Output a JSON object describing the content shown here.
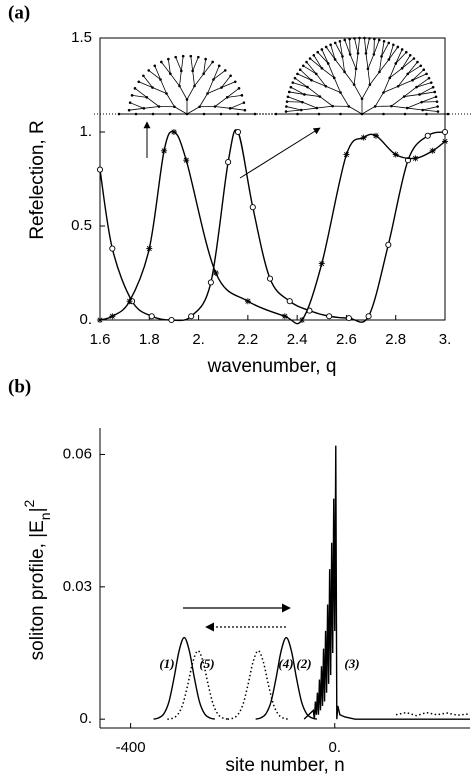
{
  "chart_data": [
    {
      "type": "line",
      "panel_label": "(a)",
      "x_label": "wavenumber, q",
      "y_label": "Refelection, R",
      "xlim": [
        1.6,
        3.0
      ],
      "ylim": [
        0,
        1.5
      ],
      "xticks": [
        1.6,
        1.8,
        {
          "value": 2,
          "label": "2."
        },
        2.2,
        2.4,
        2.6,
        2.8,
        {
          "value": 3,
          "label": "3."
        }
      ],
      "yticks": [
        {
          "value": 0,
          "label": "0."
        },
        0.5,
        {
          "value": 1,
          "label": "1."
        },
        1.5
      ],
      "series": [
        {
          "color": "#000000",
          "style": "solid",
          "marker": "circle",
          "smooth": true,
          "x": [
            1.6,
            1.65,
            1.73,
            1.81,
            1.89,
            1.97,
            2.05,
            2.12,
            2.16,
            2.22,
            2.29,
            2.37,
            2.45,
            2.53,
            2.61,
            2.69,
            2.77,
            2.85,
            2.93,
            3.0
          ],
          "values": [
            0.8,
            0.38,
            0.1,
            0.02,
            0.0,
            0.02,
            0.2,
            0.84,
            1.0,
            0.6,
            0.22,
            0.1,
            0.05,
            0.02,
            0.01,
            0.02,
            0.4,
            0.85,
            0.98,
            1.0
          ]
        },
        {
          "color": "#000000",
          "style": "solid",
          "marker": "star",
          "smooth": true,
          "x": [
            1.6,
            1.65,
            1.72,
            1.8,
            1.86,
            1.9,
            1.95,
            2.07,
            2.2,
            2.35,
            2.42,
            2.5,
            2.6,
            2.67,
            2.72,
            2.8,
            2.88,
            2.95,
            3.0
          ],
          "values": [
            0.0,
            0.02,
            0.1,
            0.38,
            0.9,
            1.0,
            0.85,
            0.25,
            0.1,
            0.02,
            0.0,
            0.3,
            0.88,
            0.97,
            0.98,
            0.88,
            0.86,
            0.9,
            0.95
          ]
        }
      ]
    },
    {
      "type": "line",
      "panel_label": "(b)",
      "x_label": "site number, n",
      "y_label": {
        "text": "soliton profile, |E",
        "sub": "n",
        "after": "|",
        "sup": "2"
      },
      "xlim": [
        -460,
        265
      ],
      "ylim": [
        -0.002,
        0.066
      ],
      "xticks": [
        -400,
        {
          "value": 0,
          "label": "0."
        }
      ],
      "yticks": [
        {
          "value": 0,
          "label": "0."
        },
        0.03,
        0.06
      ],
      "annotations": [
        "(1)",
        "(5)",
        "(4)",
        "(2)",
        "(3)"
      ],
      "series": [
        {
          "color": "#000000",
          "style": "solid",
          "smooth": true,
          "x": [
            -355,
            -345,
            -335,
            -325,
            -315,
            -305,
            -295,
            -285,
            -275,
            -265,
            -255,
            -245,
            -235
          ],
          "values": [
            0,
            0.0003,
            0.0012,
            0.0039,
            0.0093,
            0.0155,
            0.0185,
            0.0155,
            0.0093,
            0.0039,
            0.0012,
            0.0003,
            0
          ]
        },
        {
          "color": "#000000",
          "style": "solid",
          "smooth": true,
          "x": [
            -155,
            -145,
            -135,
            -125,
            -115,
            -105,
            -95,
            -85,
            -75,
            -65,
            -55,
            -45,
            -35
          ],
          "values": [
            0,
            0.0003,
            0.0012,
            0.0039,
            0.0093,
            0.0155,
            0.0185,
            0.0155,
            0.0093,
            0.0039,
            0.0012,
            0.0003,
            0
          ]
        },
        {
          "color": "#000000",
          "style": "solid",
          "smooth": false,
          "x": [
            -60,
            -42,
            -40,
            -38,
            -36,
            -34,
            -32,
            -30,
            -28,
            -26,
            -24,
            -22,
            -20,
            -18,
            -16,
            -14,
            -12,
            -10,
            -8,
            -6,
            -4,
            -2,
            0,
            2,
            4,
            6,
            10,
            20,
            40,
            100,
            265
          ],
          "values": [
            0,
            0.002,
            0,
            0.004,
            0.001,
            0.006,
            0.001,
            0.009,
            0.002,
            0.012,
            0.003,
            0.016,
            0.004,
            0.02,
            0.006,
            0.026,
            0.008,
            0.034,
            0.01,
            0.04,
            0.015,
            0.05,
            0.02,
            0.062,
            0,
            0.003,
            0.001,
            0.0005,
            0,
            0,
            0
          ]
        },
        {
          "color": "#000000",
          "style": "dotted",
          "smooth": true,
          "x": [
            -328,
            -318,
            -308,
            -298,
            -288,
            -278,
            -268,
            -258,
            -248,
            -238,
            -228,
            -218,
            -208
          ],
          "values": [
            0,
            0.0002,
            0.001,
            0.0033,
            0.0078,
            0.013,
            0.0155,
            0.013,
            0.0078,
            0.0033,
            0.001,
            0.0002,
            0
          ]
        },
        {
          "color": "#000000",
          "style": "dotted",
          "smooth": true,
          "x": [
            -210,
            -200,
            -190,
            -180,
            -170,
            -160,
            -150,
            -140,
            -130,
            -120,
            -110,
            -100,
            -90
          ],
          "values": [
            0,
            0.0002,
            0.001,
            0.0033,
            0.0078,
            0.013,
            0.0155,
            0.013,
            0.0078,
            0.0033,
            0.001,
            0.0002,
            0
          ]
        },
        {
          "color": "#000000",
          "style": "dotted",
          "smooth": false,
          "x": [
            120,
            140,
            160,
            180,
            200,
            220,
            240,
            265
          ],
          "values": [
            0.001,
            0.0015,
            0.0008,
            0.0015,
            0.001,
            0.0014,
            0.0009,
            0.0012
          ]
        }
      ]
    }
  ]
}
